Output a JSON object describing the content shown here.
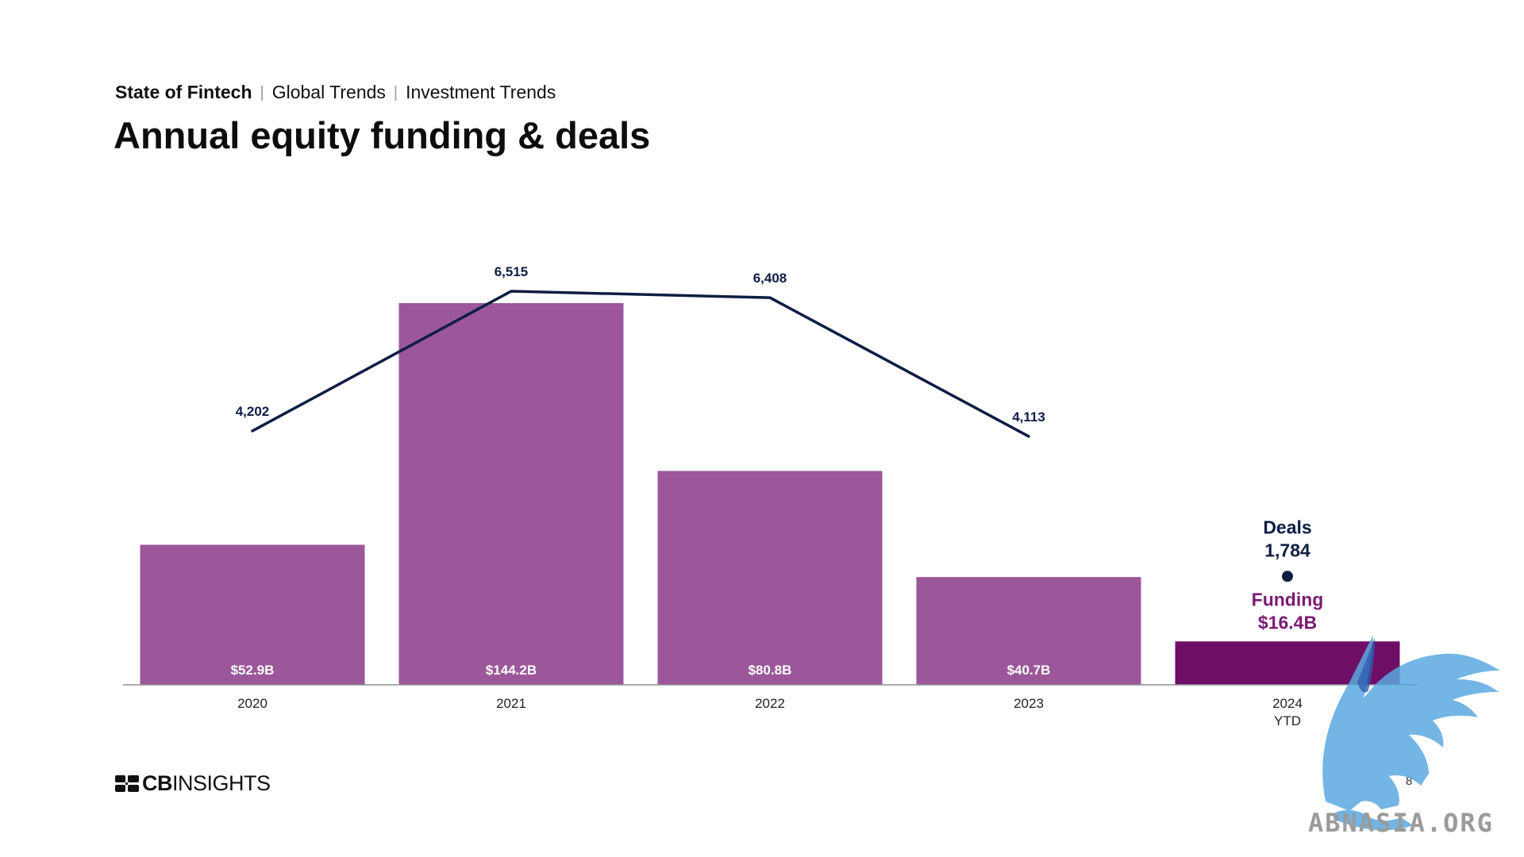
{
  "header": {
    "breadcrumb": [
      "State of Fintech",
      "Global Trends",
      "Investment Trends"
    ],
    "title": "Annual equity funding & deals"
  },
  "colors": {
    "bar": "#9b5799",
    "bar_highlight": "#6f0e67",
    "line": "#0f1d44",
    "funding_label": "#7a1a73",
    "axis": "#8f8f8f"
  },
  "chart_data": {
    "type": "bar",
    "categories": [
      "2020",
      "2021",
      "2022",
      "2023",
      "2024 YTD"
    ],
    "category_lines": [
      [
        "2020"
      ],
      [
        "2021"
      ],
      [
        "2022"
      ],
      [
        "2023"
      ],
      [
        "2024",
        "YTD"
      ]
    ],
    "series": [
      {
        "name": "Funding",
        "type": "bar",
        "unit": "$B",
        "values": [
          52.9,
          144.2,
          80.8,
          40.7,
          16.4
        ],
        "labels": [
          "$52.9B",
          "$144.2B",
          "$80.8B",
          "$40.7B",
          "$16.4B"
        ]
      },
      {
        "name": "Deals",
        "type": "line",
        "values": [
          4202,
          6515,
          6408,
          4113,
          1784
        ],
        "labels": [
          "4,202",
          "6,515",
          "6,408",
          "4,113",
          "1,784"
        ]
      }
    ],
    "annotation": {
      "deals_title": "Deals",
      "deals_value": "1,784",
      "funding_title": "Funding",
      "funding_value": "$16.4B"
    },
    "ylim_funding": [
      0,
      160
    ],
    "ylim_deals": [
      0,
      7600
    ],
    "grid": false,
    "legend": "none"
  },
  "footer": {
    "logo_bold": "CB",
    "logo_rest": "INSIGHTS",
    "page_number": "8",
    "watermark_text": "ABNASIA.ORG"
  }
}
